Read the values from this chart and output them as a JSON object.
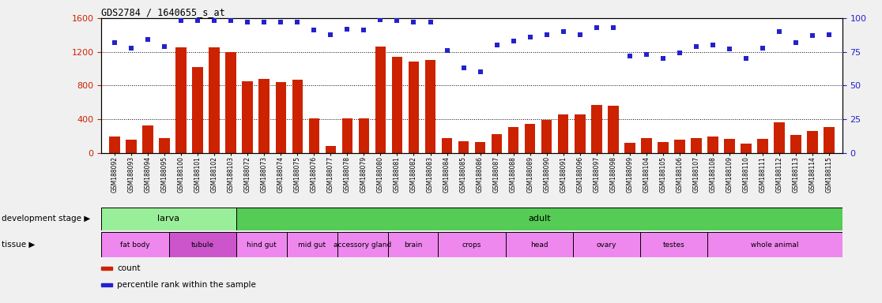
{
  "title": "GDS2784 / 1640655_s_at",
  "samples": [
    "GSM188092",
    "GSM188093",
    "GSM188094",
    "GSM188095",
    "GSM188100",
    "GSM188101",
    "GSM188102",
    "GSM188103",
    "GSM188072",
    "GSM188073",
    "GSM188074",
    "GSM188075",
    "GSM188076",
    "GSM188077",
    "GSM188078",
    "GSM188079",
    "GSM188080",
    "GSM188081",
    "GSM188082",
    "GSM188083",
    "GSM188084",
    "GSM188085",
    "GSM188086",
    "GSM188087",
    "GSM188088",
    "GSM188089",
    "GSM188090",
    "GSM188091",
    "GSM188096",
    "GSM188097",
    "GSM188098",
    "GSM188099",
    "GSM188104",
    "GSM188105",
    "GSM188106",
    "GSM188107",
    "GSM188108",
    "GSM188109",
    "GSM188110",
    "GSM188111",
    "GSM188112",
    "GSM188113",
    "GSM188114",
    "GSM188115"
  ],
  "counts": [
    200,
    155,
    330,
    175,
    1255,
    1020,
    1250,
    1200,
    850,
    875,
    840,
    870,
    415,
    80,
    415,
    415,
    1265,
    1145,
    1085,
    1105,
    180,
    140,
    135,
    225,
    305,
    345,
    395,
    460,
    455,
    570,
    560,
    120,
    175,
    135,
    155,
    175,
    195,
    170,
    110,
    165,
    365,
    210,
    260,
    305
  ],
  "percentile_ranks": [
    82,
    78,
    84,
    79,
    98,
    98,
    98,
    98,
    97,
    97,
    97,
    97,
    91,
    88,
    92,
    91,
    99,
    98,
    97,
    97,
    76,
    63,
    60,
    80,
    83,
    86,
    88,
    90,
    88,
    93,
    93,
    72,
    73,
    70,
    74,
    79,
    80,
    77,
    70,
    78,
    90,
    82,
    87,
    88
  ],
  "ylim_left": [
    0,
    1600
  ],
  "ylim_right": [
    0,
    100
  ],
  "yticks_left": [
    0,
    400,
    800,
    1200,
    1600
  ],
  "yticks_right": [
    0,
    25,
    50,
    75,
    100
  ],
  "bar_color": "#cc2200",
  "dot_color": "#2222cc",
  "plot_bg": "#ffffff",
  "fig_bg": "#f0f0f0",
  "grid_color": "#333333",
  "development_stage_row": [
    {
      "label": "larva",
      "start": 0,
      "end": 8,
      "color": "#99ee99"
    },
    {
      "label": "adult",
      "start": 8,
      "end": 44,
      "color": "#55cc55"
    }
  ],
  "tissue_row": [
    {
      "label": "fat body",
      "start": 0,
      "end": 4,
      "color": "#ee88ee"
    },
    {
      "label": "tubule",
      "start": 4,
      "end": 8,
      "color": "#cc55cc"
    },
    {
      "label": "hind gut",
      "start": 8,
      "end": 11,
      "color": "#ee88ee"
    },
    {
      "label": "mid gut",
      "start": 11,
      "end": 14,
      "color": "#ee88ee"
    },
    {
      "label": "accessory gland",
      "start": 14,
      "end": 17,
      "color": "#ee88ee"
    },
    {
      "label": "brain",
      "start": 17,
      "end": 20,
      "color": "#ee88ee"
    },
    {
      "label": "crops",
      "start": 20,
      "end": 24,
      "color": "#ee88ee"
    },
    {
      "label": "head",
      "start": 24,
      "end": 28,
      "color": "#ee88ee"
    },
    {
      "label": "ovary",
      "start": 28,
      "end": 32,
      "color": "#ee88ee"
    },
    {
      "label": "testes",
      "start": 32,
      "end": 36,
      "color": "#ee88ee"
    },
    {
      "label": "whole animal",
      "start": 36,
      "end": 44,
      "color": "#ee88ee"
    }
  ],
  "legend_items": [
    {
      "label": "count",
      "color": "#cc2200"
    },
    {
      "label": "percentile rank within the sample",
      "color": "#2222cc"
    }
  ],
  "xticklabel_bg": "#d8d8d8"
}
